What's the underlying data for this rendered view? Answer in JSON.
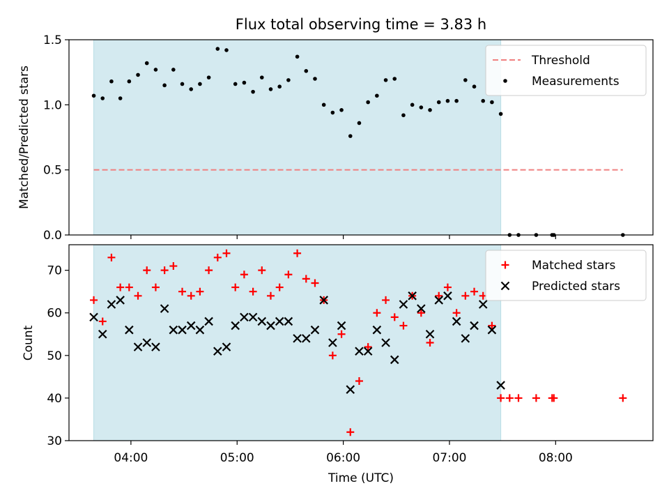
{
  "figure": {
    "title": "Flux total observing time = 3.83 h"
  },
  "chart_data": [
    {
      "type": "scatter",
      "panel": "top",
      "title": "Flux total observing time = 3.83 h",
      "xlabel": "",
      "ylabel": "Matched/Predicted stars",
      "xlim": [
        "03:25",
        "08:55"
      ],
      "ylim": [
        0,
        1.5
      ],
      "yticks": [
        0.0,
        0.5,
        1.0,
        1.5
      ],
      "ytick_labels": [
        "0.0",
        "0.5",
        "1.0",
        "1.5"
      ],
      "xticks": [
        "04:00",
        "05:00",
        "06:00",
        "07:00",
        "08:00"
      ],
      "shaded_region": {
        "start": "03:39",
        "end": "07:29",
        "color": "#d4eaf0"
      },
      "threshold": {
        "name": "Threshold",
        "value": 0.5,
        "x_start": "03:39",
        "x_end": "08:38",
        "color": "#f08080"
      },
      "legend": {
        "position": "top-right",
        "entries": [
          "Threshold",
          "Measurements"
        ]
      },
      "grid": false,
      "series": [
        {
          "name": "Measurements",
          "color": "#000000",
          "marker": "dot",
          "x": [
            "03:39",
            "03:44",
            "03:49",
            "03:54",
            "03:59",
            "04:04",
            "04:09",
            "04:14",
            "04:19",
            "04:24",
            "04:29",
            "04:34",
            "04:39",
            "04:44",
            "04:49",
            "04:54",
            "04:59",
            "05:04",
            "05:09",
            "05:14",
            "05:19",
            "05:24",
            "05:29",
            "05:34",
            "05:39",
            "05:44",
            "05:49",
            "05:54",
            "05:59",
            "06:04",
            "06:09",
            "06:14",
            "06:19",
            "06:24",
            "06:29",
            "06:34",
            "06:39",
            "06:44",
            "06:49",
            "06:54",
            "06:59",
            "07:04",
            "07:09",
            "07:14",
            "07:19",
            "07:24",
            "07:29",
            "07:34",
            "07:39",
            "07:49",
            "07:58",
            "07:59",
            "08:38"
          ],
          "y": [
            1.07,
            1.05,
            1.18,
            1.05,
            1.18,
            1.23,
            1.32,
            1.27,
            1.15,
            1.27,
            1.16,
            1.12,
            1.16,
            1.21,
            1.43,
            1.42,
            1.16,
            1.17,
            1.1,
            1.21,
            1.12,
            1.14,
            1.19,
            1.37,
            1.26,
            1.2,
            1.0,
            0.94,
            0.96,
            0.76,
            0.86,
            1.02,
            1.07,
            1.19,
            1.2,
            0.92,
            1.0,
            0.98,
            0.96,
            1.02,
            1.03,
            1.03,
            1.19,
            1.14,
            1.03,
            1.02,
            0.93,
            0.0,
            0.0,
            0.0,
            0.0,
            0.0,
            0.0
          ]
        }
      ]
    },
    {
      "type": "scatter",
      "panel": "bottom",
      "xlabel": "Time (UTC)",
      "ylabel": "Count",
      "xlim": [
        "03:25",
        "08:55"
      ],
      "ylim": [
        30,
        76
      ],
      "yticks": [
        30,
        40,
        50,
        60,
        70
      ],
      "xticks": [
        "04:00",
        "05:00",
        "06:00",
        "07:00",
        "08:00"
      ],
      "shaded_region": {
        "start": "03:39",
        "end": "07:29",
        "color": "#d4eaf0"
      },
      "legend": {
        "position": "top-right",
        "entries": [
          "Matched stars",
          "Predicted stars"
        ]
      },
      "grid": false,
      "series": [
        {
          "name": "Matched stars",
          "color": "#ff0000",
          "marker": "plus",
          "x": [
            "03:39",
            "03:44",
            "03:49",
            "03:54",
            "03:59",
            "04:04",
            "04:09",
            "04:14",
            "04:19",
            "04:24",
            "04:29",
            "04:34",
            "04:39",
            "04:44",
            "04:49",
            "04:54",
            "04:59",
            "05:04",
            "05:09",
            "05:14",
            "05:19",
            "05:24",
            "05:29",
            "05:34",
            "05:39",
            "05:44",
            "05:49",
            "05:54",
            "05:59",
            "06:04",
            "06:09",
            "06:14",
            "06:19",
            "06:24",
            "06:29",
            "06:34",
            "06:39",
            "06:44",
            "06:49",
            "06:54",
            "06:59",
            "07:04",
            "07:09",
            "07:14",
            "07:19",
            "07:24",
            "07:29",
            "07:34",
            "07:39",
            "07:49",
            "07:58",
            "07:59",
            "08:38"
          ],
          "y": [
            63,
            58,
            73,
            66,
            66,
            64,
            70,
            66,
            70,
            71,
            65,
            64,
            65,
            70,
            73,
            74,
            66,
            69,
            65,
            70,
            64,
            66,
            69,
            74,
            68,
            67,
            63,
            50,
            55,
            32,
            44,
            52,
            60,
            63,
            59,
            57,
            64,
            60,
            53,
            64,
            66,
            60,
            64,
            65,
            64,
            57,
            40,
            40,
            40,
            40,
            40,
            40,
            40
          ]
        },
        {
          "name": "Predicted stars",
          "color": "#000000",
          "marker": "x",
          "x": [
            "03:39",
            "03:44",
            "03:49",
            "03:54",
            "03:59",
            "04:04",
            "04:09",
            "04:14",
            "04:19",
            "04:24",
            "04:29",
            "04:34",
            "04:39",
            "04:44",
            "04:49",
            "04:54",
            "04:59",
            "05:04",
            "05:09",
            "05:14",
            "05:19",
            "05:24",
            "05:29",
            "05:34",
            "05:39",
            "05:44",
            "05:49",
            "05:54",
            "05:59",
            "06:04",
            "06:09",
            "06:14",
            "06:19",
            "06:24",
            "06:29",
            "06:34",
            "06:39",
            "06:44",
            "06:49",
            "06:54",
            "06:59",
            "07:04",
            "07:09",
            "07:14",
            "07:19",
            "07:24",
            "07:29"
          ],
          "y": [
            59,
            55,
            62,
            63,
            56,
            52,
            53,
            52,
            61,
            56,
            56,
            57,
            56,
            58,
            51,
            52,
            57,
            59,
            59,
            58,
            57,
            58,
            58,
            54,
            54,
            56,
            63,
            53,
            57,
            42,
            51,
            51,
            56,
            53,
            49,
            62,
            64,
            61,
            55,
            63,
            64,
            58,
            54,
            57,
            62,
            56,
            43
          ]
        }
      ]
    }
  ]
}
